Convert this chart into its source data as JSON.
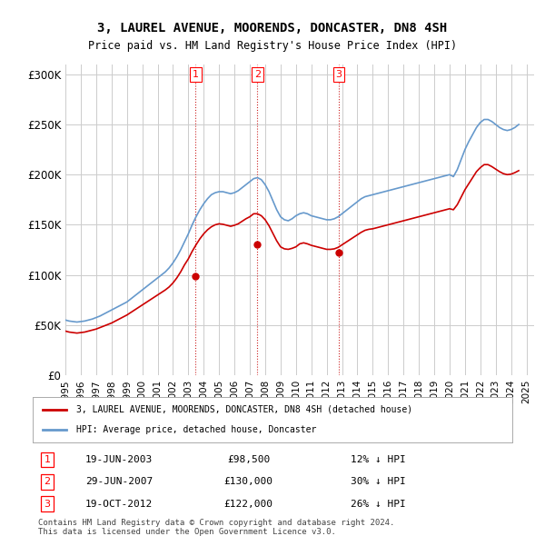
{
  "title": "3, LAUREL AVENUE, MOORENDS, DONCASTER, DN8 4SH",
  "subtitle": "Price paid vs. HM Land Registry's House Price Index (HPI)",
  "ylabel_ticks": [
    "£0",
    "£50K",
    "£100K",
    "£150K",
    "£200K",
    "£250K",
    "£300K"
  ],
  "ytick_values": [
    0,
    50000,
    100000,
    150000,
    200000,
    250000,
    300000
  ],
  "ylim": [
    0,
    310000
  ],
  "xlim_start": 1995.0,
  "xlim_end": 2025.5,
  "hpi_color": "#6699cc",
  "price_color": "#cc0000",
  "sale_marker_color": "#cc0000",
  "dashed_line_color": "#cc2222",
  "background_color": "#ffffff",
  "grid_color": "#cccccc",
  "sales": [
    {
      "label": "1",
      "year": 2003.47,
      "price": 98500,
      "date": "19-JUN-2003",
      "pct": "12%",
      "dir": "↓"
    },
    {
      "label": "2",
      "year": 2007.49,
      "price": 130000,
      "date": "29-JUN-2007",
      "pct": "30%",
      "dir": "↓"
    },
    {
      "label": "3",
      "year": 2012.8,
      "price": 122000,
      "date": "19-OCT-2012",
      "pct": "26%",
      "dir": "↓"
    }
  ],
  "legend_label_red": "3, LAUREL AVENUE, MOORENDS, DONCASTER, DN8 4SH (detached house)",
  "legend_label_blue": "HPI: Average price, detached house, Doncaster",
  "footnote1": "Contains HM Land Registry data © Crown copyright and database right 2024.",
  "footnote2": "This data is licensed under the Open Government Licence v3.0.",
  "hpi_data": {
    "years": [
      1995.0,
      1995.25,
      1995.5,
      1995.75,
      1996.0,
      1996.25,
      1996.5,
      1996.75,
      1997.0,
      1997.25,
      1997.5,
      1997.75,
      1998.0,
      1998.25,
      1998.5,
      1998.75,
      1999.0,
      1999.25,
      1999.5,
      1999.75,
      2000.0,
      2000.25,
      2000.5,
      2000.75,
      2001.0,
      2001.25,
      2001.5,
      2001.75,
      2002.0,
      2002.25,
      2002.5,
      2002.75,
      2003.0,
      2003.25,
      2003.5,
      2003.75,
      2004.0,
      2004.25,
      2004.5,
      2004.75,
      2005.0,
      2005.25,
      2005.5,
      2005.75,
      2006.0,
      2006.25,
      2006.5,
      2006.75,
      2007.0,
      2007.25,
      2007.5,
      2007.75,
      2008.0,
      2008.25,
      2008.5,
      2008.75,
      2009.0,
      2009.25,
      2009.5,
      2009.75,
      2010.0,
      2010.25,
      2010.5,
      2010.75,
      2011.0,
      2011.25,
      2011.5,
      2011.75,
      2012.0,
      2012.25,
      2012.5,
      2012.75,
      2013.0,
      2013.25,
      2013.5,
      2013.75,
      2014.0,
      2014.25,
      2014.5,
      2014.75,
      2015.0,
      2015.25,
      2015.5,
      2015.75,
      2016.0,
      2016.25,
      2016.5,
      2016.75,
      2017.0,
      2017.25,
      2017.5,
      2017.75,
      2018.0,
      2018.25,
      2018.5,
      2018.75,
      2019.0,
      2019.25,
      2019.5,
      2019.75,
      2020.0,
      2020.25,
      2020.5,
      2020.75,
      2021.0,
      2021.25,
      2021.5,
      2021.75,
      2022.0,
      2022.25,
      2022.5,
      2022.75,
      2023.0,
      2023.25,
      2023.5,
      2023.75,
      2024.0,
      2024.25,
      2024.5
    ],
    "values": [
      55000,
      54000,
      53500,
      53000,
      53500,
      54000,
      55000,
      56000,
      57500,
      59000,
      61000,
      63000,
      65000,
      67000,
      69000,
      71000,
      73000,
      76000,
      79000,
      82000,
      85000,
      88000,
      91000,
      94000,
      97000,
      100000,
      103000,
      107000,
      112000,
      118000,
      125000,
      133000,
      141000,
      150000,
      158000,
      165000,
      171000,
      176000,
      180000,
      182000,
      183000,
      183000,
      182000,
      181000,
      182000,
      184000,
      187000,
      190000,
      193000,
      196000,
      197000,
      195000,
      190000,
      183000,
      174000,
      165000,
      158000,
      155000,
      154000,
      156000,
      159000,
      161000,
      162000,
      161000,
      159000,
      158000,
      157000,
      156000,
      155000,
      155000,
      156000,
      158000,
      161000,
      164000,
      167000,
      170000,
      173000,
      176000,
      178000,
      179000,
      180000,
      181000,
      182000,
      183000,
      184000,
      185000,
      186000,
      187000,
      188000,
      189000,
      190000,
      191000,
      192000,
      193000,
      194000,
      195000,
      196000,
      197000,
      198000,
      199000,
      200000,
      198000,
      205000,
      215000,
      225000,
      233000,
      240000,
      247000,
      252000,
      255000,
      255000,
      253000,
      250000,
      247000,
      245000,
      244000,
      245000,
      247000,
      250000
    ]
  },
  "price_hpi_data": {
    "years": [
      1995.0,
      1995.25,
      1995.5,
      1995.75,
      1996.0,
      1996.25,
      1996.5,
      1996.75,
      1997.0,
      1997.25,
      1997.5,
      1997.75,
      1998.0,
      1998.25,
      1998.5,
      1998.75,
      1999.0,
      1999.25,
      1999.5,
      1999.75,
      2000.0,
      2000.25,
      2000.5,
      2000.75,
      2001.0,
      2001.25,
      2001.5,
      2001.75,
      2002.0,
      2002.25,
      2002.5,
      2002.75,
      2003.0,
      2003.25,
      2003.5,
      2003.75,
      2004.0,
      2004.25,
      2004.5,
      2004.75,
      2005.0,
      2005.25,
      2005.5,
      2005.75,
      2006.0,
      2006.25,
      2006.5,
      2006.75,
      2007.0,
      2007.25,
      2007.5,
      2007.75,
      2008.0,
      2008.25,
      2008.5,
      2008.75,
      2009.0,
      2009.25,
      2009.5,
      2009.75,
      2010.0,
      2010.25,
      2010.5,
      2010.75,
      2011.0,
      2011.25,
      2011.5,
      2011.75,
      2012.0,
      2012.25,
      2012.5,
      2012.75,
      2013.0,
      2013.25,
      2013.5,
      2013.75,
      2014.0,
      2014.25,
      2014.5,
      2014.75,
      2015.0,
      2015.25,
      2015.5,
      2015.75,
      2016.0,
      2016.25,
      2016.5,
      2016.75,
      2017.0,
      2017.25,
      2017.5,
      2017.75,
      2018.0,
      2018.25,
      2018.5,
      2018.75,
      2019.0,
      2019.25,
      2019.5,
      2019.75,
      2020.0,
      2020.25,
      2020.5,
      2020.75,
      2021.0,
      2021.25,
      2021.5,
      2021.75,
      2022.0,
      2022.25,
      2022.5,
      2022.75,
      2023.0,
      2023.25,
      2023.5,
      2023.75,
      2024.0,
      2024.25,
      2024.5
    ],
    "values": [
      44000,
      43000,
      42500,
      42000,
      42500,
      43000,
      44000,
      45000,
      46000,
      47500,
      49000,
      50500,
      52000,
      54000,
      56000,
      58000,
      60000,
      62500,
      65000,
      67500,
      70000,
      72500,
      75000,
      77500,
      80000,
      82500,
      85000,
      88000,
      92000,
      97000,
      103000,
      110000,
      116000,
      123500,
      130000,
      136000,
      141000,
      145000,
      148000,
      150000,
      151000,
      150500,
      149500,
      148500,
      149500,
      151000,
      153500,
      156000,
      158000,
      161000,
      161000,
      159000,
      155000,
      149000,
      141500,
      134000,
      128000,
      126000,
      125500,
      126500,
      128000,
      131000,
      132000,
      131000,
      129500,
      128500,
      127500,
      126500,
      125500,
      125500,
      126000,
      127500,
      130000,
      132500,
      135000,
      137500,
      140000,
      142500,
      144500,
      145500,
      146000,
      147000,
      148000,
      149000,
      150000,
      151000,
      152000,
      153000,
      154000,
      155000,
      156000,
      157000,
      158000,
      159000,
      160000,
      161000,
      162000,
      163000,
      164000,
      165000,
      166000,
      165000,
      170000,
      177500,
      185000,
      191000,
      197000,
      203000,
      207000,
      210000,
      210000,
      208000,
      205500,
      203000,
      201000,
      200000,
      200500,
      202000,
      204000
    ]
  }
}
